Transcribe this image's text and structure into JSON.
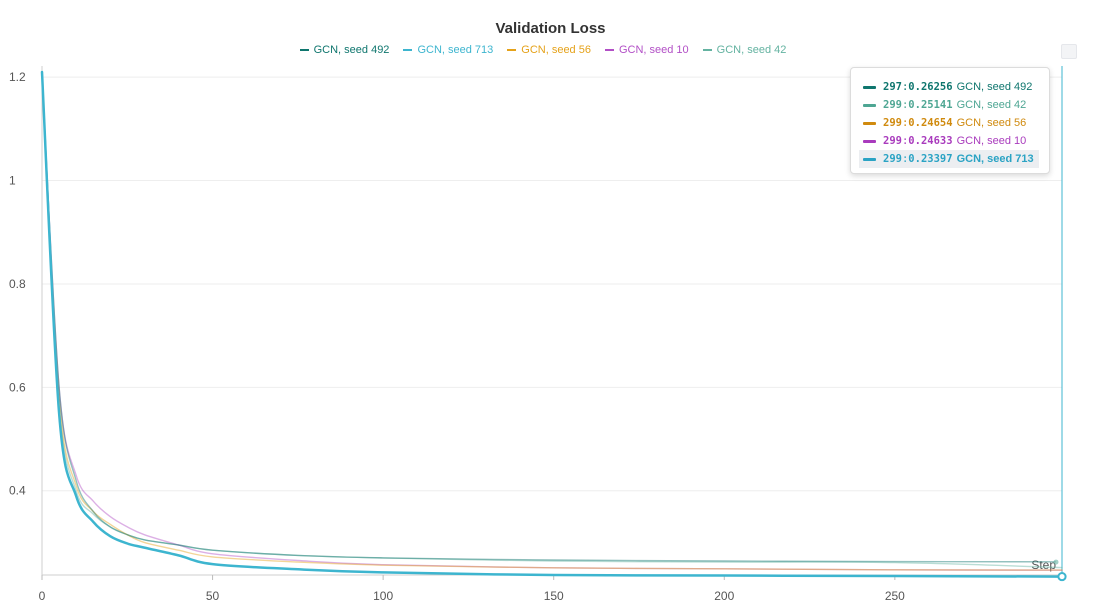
{
  "chart_data": {
    "type": "line",
    "title": "Validation Loss",
    "xlabel": "Step",
    "ylabel": "",
    "xlim": [
      0,
      299
    ],
    "ylim": [
      0.237,
      1.21
    ],
    "x_ticks": [
      0,
      50,
      100,
      150,
      200,
      250
    ],
    "y_ticks": [
      0.4,
      0.6,
      0.8,
      1,
      1.2
    ],
    "y_tick_labels": [
      "0.4",
      "0.6",
      "0.8",
      "1",
      "1.2"
    ],
    "grid": true,
    "legend_position": "top-center",
    "series": [
      {
        "name": "GCN, seed 492",
        "color": "#0f766e",
        "x": [
          0,
          5,
          10,
          15,
          20,
          25,
          30,
          40,
          50,
          75,
          100,
          150,
          200,
          250,
          297
        ],
        "y": [
          1.21,
          0.6,
          0.42,
          0.36,
          0.33,
          0.315,
          0.305,
          0.295,
          0.285,
          0.275,
          0.27,
          0.266,
          0.264,
          0.263,
          0.26256
        ]
      },
      {
        "name": "GCN, seed 713",
        "color": "#3db5cf",
        "x": [
          0,
          5,
          10,
          15,
          20,
          25,
          30,
          40,
          50,
          75,
          100,
          150,
          200,
          250,
          299
        ],
        "y": [
          1.21,
          0.55,
          0.39,
          0.34,
          0.312,
          0.298,
          0.29,
          0.275,
          0.258,
          0.248,
          0.242,
          0.237,
          0.236,
          0.235,
          0.23397
        ]
      },
      {
        "name": "GCN, seed 56",
        "color": "#e5a21a",
        "x": [
          0,
          5,
          10,
          15,
          20,
          25,
          30,
          40,
          50,
          75,
          100,
          150,
          200,
          250,
          299
        ],
        "y": [
          1.21,
          0.58,
          0.41,
          0.36,
          0.335,
          0.315,
          0.3,
          0.285,
          0.272,
          0.262,
          0.256,
          0.251,
          0.249,
          0.247,
          0.24654
        ]
      },
      {
        "name": "GCN, seed 10",
        "color": "#b24fc6",
        "x": [
          0,
          5,
          10,
          15,
          20,
          25,
          30,
          40,
          50,
          75,
          100,
          150,
          200,
          250,
          299
        ],
        "y": [
          1.21,
          0.6,
          0.43,
          0.38,
          0.35,
          0.33,
          0.315,
          0.295,
          0.278,
          0.265,
          0.257,
          0.251,
          0.249,
          0.247,
          0.24633
        ]
      },
      {
        "name": "GCN, seed 42",
        "color": "#64b3a1",
        "x": [
          0,
          5,
          10,
          15,
          20,
          25,
          30,
          40,
          50,
          75,
          100,
          150,
          200,
          250,
          299
        ],
        "y": [
          1.21,
          0.57,
          0.4,
          0.355,
          0.33,
          0.315,
          0.305,
          0.295,
          0.285,
          0.275,
          0.27,
          0.264,
          0.262,
          0.261,
          0.25141
        ]
      }
    ],
    "tooltip": [
      {
        "step": "297",
        "value": "0.26256",
        "name": "GCN, seed 492",
        "color": "#0f766e",
        "highlight": false
      },
      {
        "step": "299",
        "value": "0.25141",
        "name": "GCN, seed 42",
        "color": "#4ea693",
        "highlight": false
      },
      {
        "step": "299",
        "value": "0.24654",
        "name": "GCN, seed 56",
        "color": "#d08a0e",
        "highlight": false
      },
      {
        "step": "299",
        "value": "0.24633",
        "name": "GCN, seed 10",
        "color": "#a93bbd",
        "highlight": false
      },
      {
        "step": "299",
        "value": "0.23397",
        "name": "GCN, seed 713",
        "color": "#2aa3c4",
        "highlight": true
      }
    ],
    "legend": [
      {
        "name": "GCN, seed 492",
        "color": "#0f766e"
      },
      {
        "name": "GCN, seed 713",
        "color": "#3db5cf"
      },
      {
        "name": "GCN, seed 56",
        "color": "#e5a21a"
      },
      {
        "name": "GCN, seed 10",
        "color": "#b24fc6"
      },
      {
        "name": "GCN, seed 42",
        "color": "#64b3a1"
      }
    ]
  }
}
